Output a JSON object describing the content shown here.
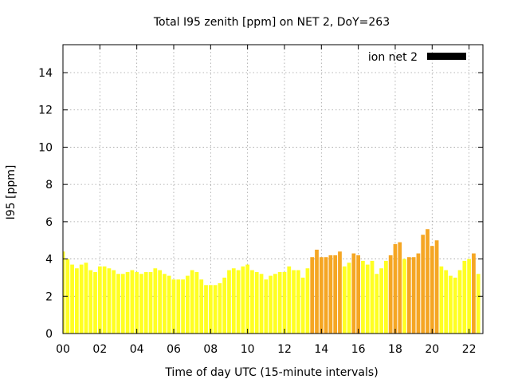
{
  "chart_data": {
    "type": "bar",
    "title": "Total I95 zenith [ppm] on NET 2, DoY=263",
    "xlabel": "Time of day UTC (15-minute intervals)",
    "ylabel": "I95 [ppm]",
    "xlim": [
      0,
      22.75
    ],
    "ylim": [
      0,
      15.5
    ],
    "x_ticks": [
      "00",
      "02",
      "04",
      "06",
      "08",
      "10",
      "12",
      "14",
      "16",
      "18",
      "20",
      "22"
    ],
    "y_ticks": [
      "0",
      "2",
      "4",
      "6",
      "8",
      "10",
      "12",
      "14"
    ],
    "grid": true,
    "legend": {
      "position": "top-right",
      "entries": [
        {
          "name": "ion net 2",
          "color": "#000000"
        }
      ]
    },
    "colors": {
      "low": "#ffff22",
      "medium": "#f5a623"
    },
    "series": [
      {
        "name": "ion net 2",
        "interval_hours": 0.25,
        "values": [
          4.4,
          4.0,
          3.7,
          3.5,
          3.7,
          3.8,
          3.4,
          3.3,
          3.6,
          3.6,
          3.5,
          3.4,
          3.2,
          3.2,
          3.3,
          3.4,
          3.3,
          3.2,
          3.3,
          3.3,
          3.5,
          3.4,
          3.2,
          3.1,
          2.9,
          2.9,
          2.9,
          3.1,
          3.4,
          3.3,
          2.9,
          2.6,
          2.6,
          2.6,
          2.7,
          3.0,
          3.4,
          3.5,
          3.4,
          3.6,
          3.7,
          3.4,
          3.3,
          3.2,
          2.9,
          3.1,
          3.2,
          3.3,
          3.3,
          3.6,
          3.4,
          3.4,
          3.0,
          3.5,
          4.1,
          4.5,
          4.1,
          4.1,
          4.2,
          4.2,
          4.4,
          3.6,
          3.8,
          4.3,
          4.2,
          3.9,
          3.7,
          3.9,
          3.2,
          3.5,
          3.9,
          4.2,
          4.8,
          4.9,
          4.0,
          4.1,
          4.1,
          4.3,
          5.3,
          5.6,
          4.7,
          5.0,
          3.6,
          3.4,
          3.1,
          3.0,
          3.4,
          3.9,
          4.0,
          4.3,
          3.2
        ],
        "colors": [
          "low",
          "low",
          "low",
          "low",
          "low",
          "low",
          "low",
          "low",
          "low",
          "low",
          "low",
          "low",
          "low",
          "low",
          "low",
          "low",
          "low",
          "low",
          "low",
          "low",
          "low",
          "low",
          "low",
          "low",
          "low",
          "low",
          "low",
          "low",
          "low",
          "low",
          "low",
          "low",
          "low",
          "low",
          "low",
          "low",
          "low",
          "low",
          "low",
          "low",
          "low",
          "low",
          "low",
          "low",
          "low",
          "low",
          "low",
          "low",
          "low",
          "low",
          "low",
          "low",
          "low",
          "low",
          "medium",
          "medium",
          "medium",
          "medium",
          "medium",
          "medium",
          "medium",
          "low",
          "low",
          "medium",
          "medium",
          "low",
          "low",
          "low",
          "low",
          "low",
          "low",
          "medium",
          "medium",
          "medium",
          "low",
          "medium",
          "medium",
          "medium",
          "medium",
          "medium",
          "medium",
          "medium",
          "low",
          "low",
          "low",
          "low",
          "low",
          "low",
          "low",
          "medium",
          "low"
        ]
      }
    ]
  }
}
